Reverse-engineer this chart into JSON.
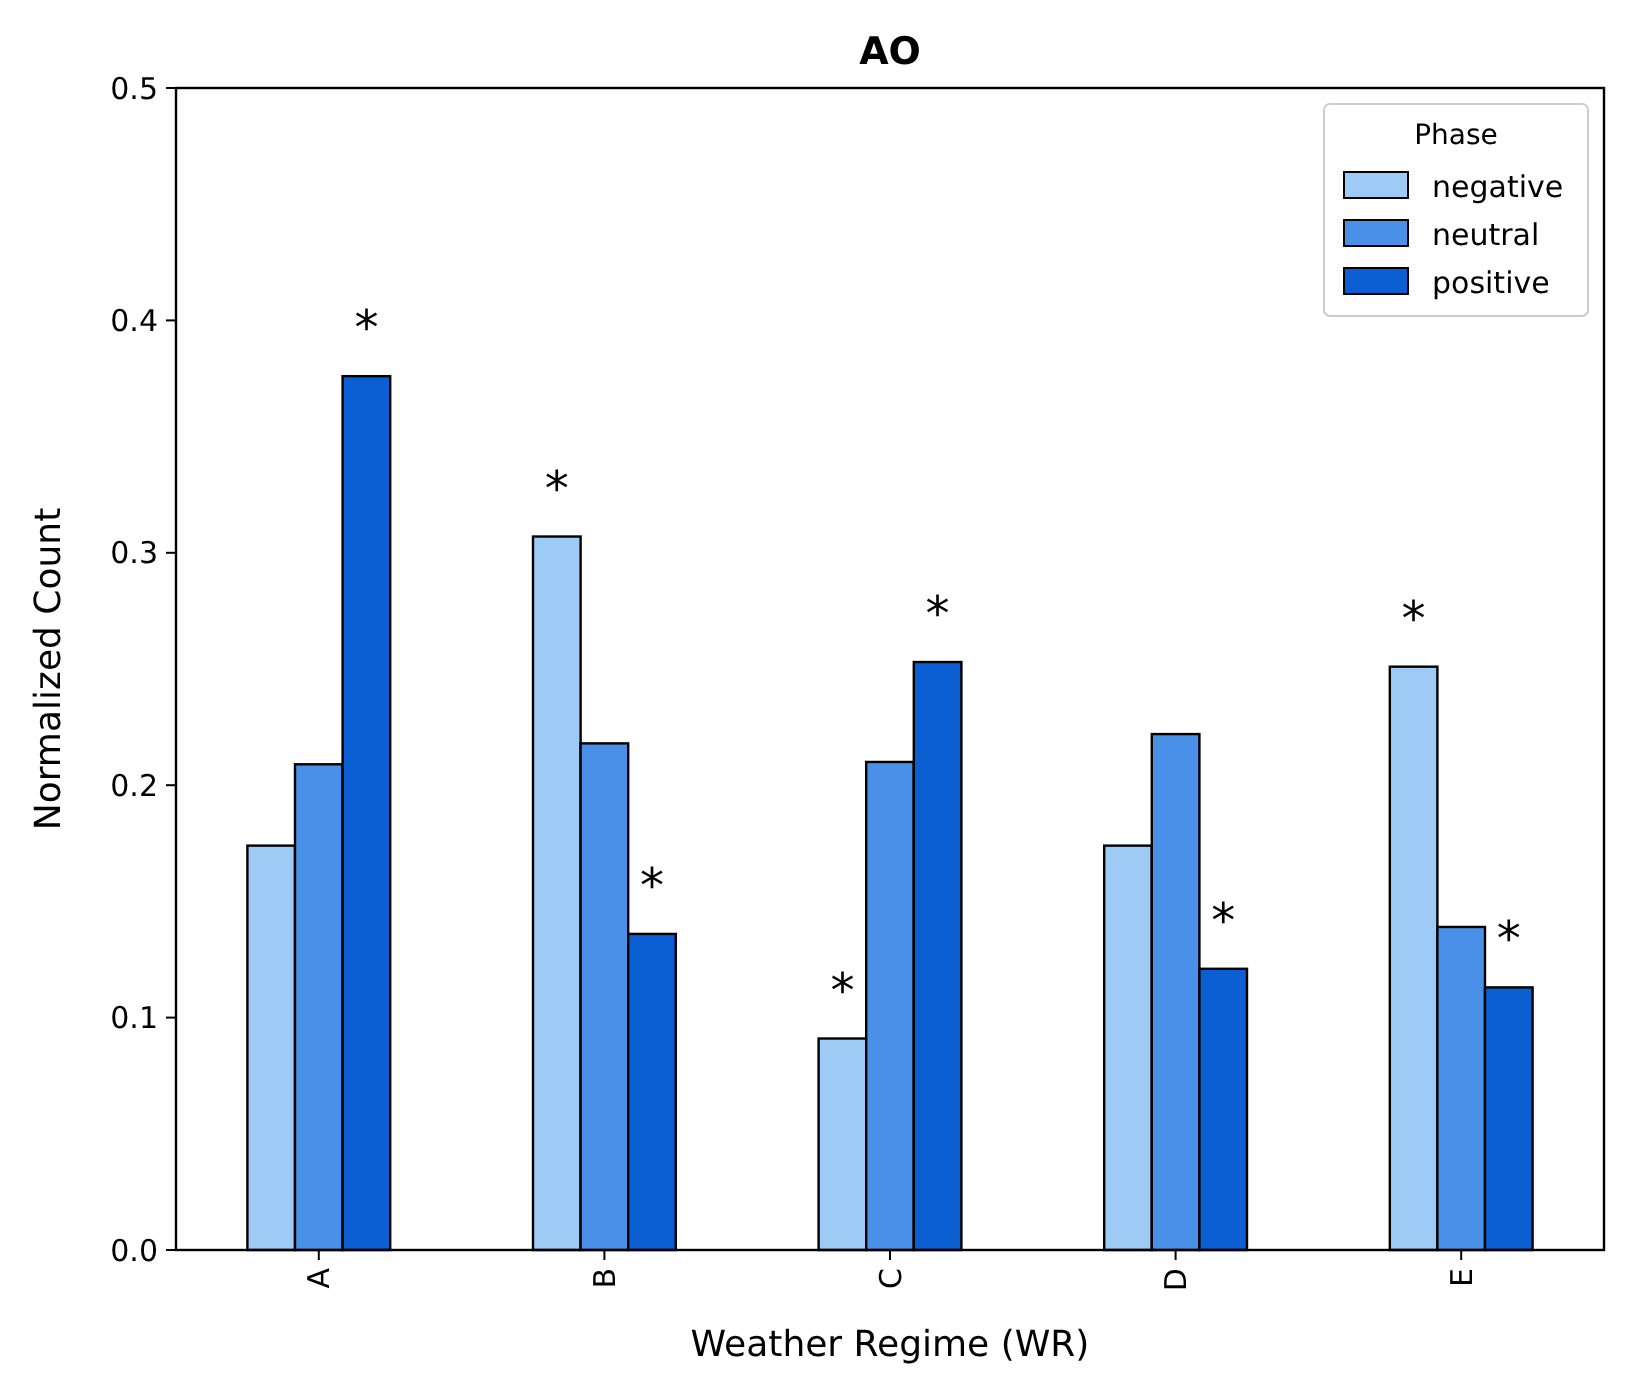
{
  "chart_data": {
    "type": "bar",
    "title": "AO",
    "xlabel": "Weather Regime (WR)",
    "ylabel": "Normalized Count",
    "legend_title": "Phase",
    "legend": "top right",
    "grid": false,
    "categories": [
      "A",
      "B",
      "C",
      "D",
      "E"
    ],
    "series": [
      {
        "name": "negative",
        "color": "#9ecbf5",
        "values": [
          0.174,
          0.307,
          0.091,
          0.174,
          0.251
        ],
        "value_labels": [
          null,
          "*",
          "*",
          null,
          "*"
        ]
      },
      {
        "name": "neutral",
        "color": "#4a90e8",
        "values": [
          0.209,
          0.218,
          0.21,
          0.222,
          0.139
        ],
        "value_labels": [
          null,
          null,
          null,
          null,
          null
        ]
      },
      {
        "name": "positive",
        "color": "#0b5fd2",
        "values": [
          0.376,
          0.136,
          0.253,
          0.121,
          0.113
        ],
        "value_labels": [
          "*",
          "*",
          "*",
          "*",
          "*"
        ]
      }
    ],
    "ylim": [
      0,
      0.5
    ],
    "yticks": [
      {
        "value": 0,
        "label": "0.0"
      },
      0.1,
      0.2,
      0.3,
      0.4,
      0.5
    ]
  }
}
